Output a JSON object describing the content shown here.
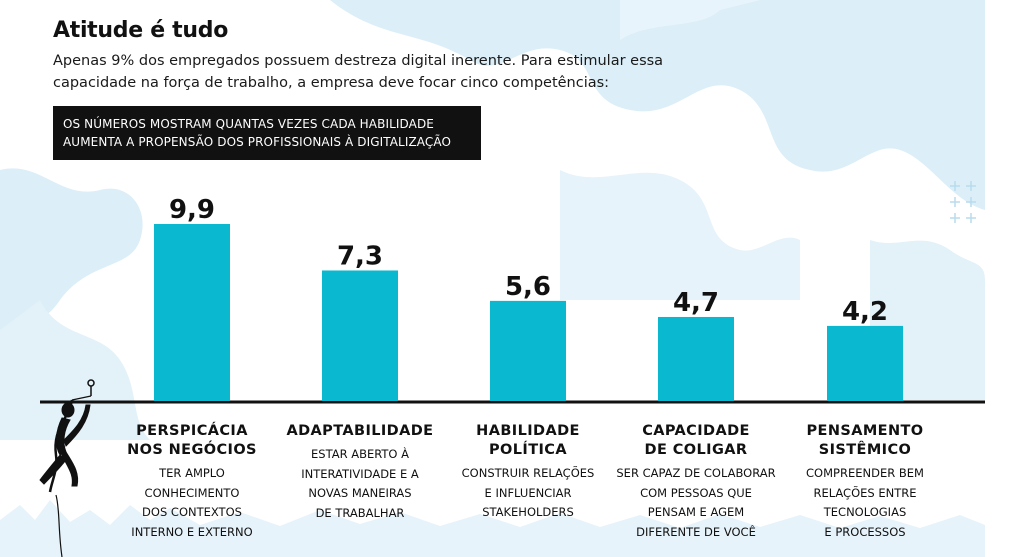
{
  "title": "Atitude é tudo",
  "subtitle": "Apenas 9% dos empregados possuem destreza digital inerente. Para estimular essa capacidade na força de trabalho, a empresa deve focar cinco competências:",
  "note": "OS NÚMEROS MOSTRAM QUANTAS VEZES CADA HABILIDADE AUMENTA A PROPENSÃO DOS PROFISSIONAIS À DIGITALIZAÇÃO",
  "colors": {
    "bar": "#0ab8cf",
    "background_shape": "#dceef8",
    "text": "#111111"
  },
  "chart_data": {
    "type": "bar",
    "categories": [
      "PERSPICÁCIA\nNOS NEGÓCIOS",
      "ADAPTABILIDADE",
      "HABILIDADE\nPOLÍTICA",
      "CAPACIDADE\nDE COLIGAR",
      "PENSAMENTO\nSISTÊMICO"
    ],
    "values": [
      9.9,
      7.3,
      5.6,
      4.7,
      4.2
    ],
    "value_labels": [
      "9,9",
      "7,3",
      "5,6",
      "4,7",
      "4,2"
    ],
    "descriptions": [
      "TER AMPLO\nCONHECIMENTO\nDOS CONTEXTOS\nINTERNO E EXTERNO",
      "ESTAR ABERTO À\nINTERATIVIDADE E A\nNOVAS MANEIRAS\nDE TRABALHAR",
      "CONSTRUIR RELAÇÕES\nE INFLUENCIAR\nSTAKEHOLDERS",
      "SER CAPAZ DE COLABORAR\nCOM PESSOAS QUE\nPENSAM E AGEM\nDIFERENTE DE VOCÊ",
      "COMPREENDER BEM\nRELAÇÕES ENTRE\nTECNOLOGIAS\nE PROCESSOS"
    ],
    "ylim": [
      0,
      9.9
    ],
    "grid": false
  }
}
